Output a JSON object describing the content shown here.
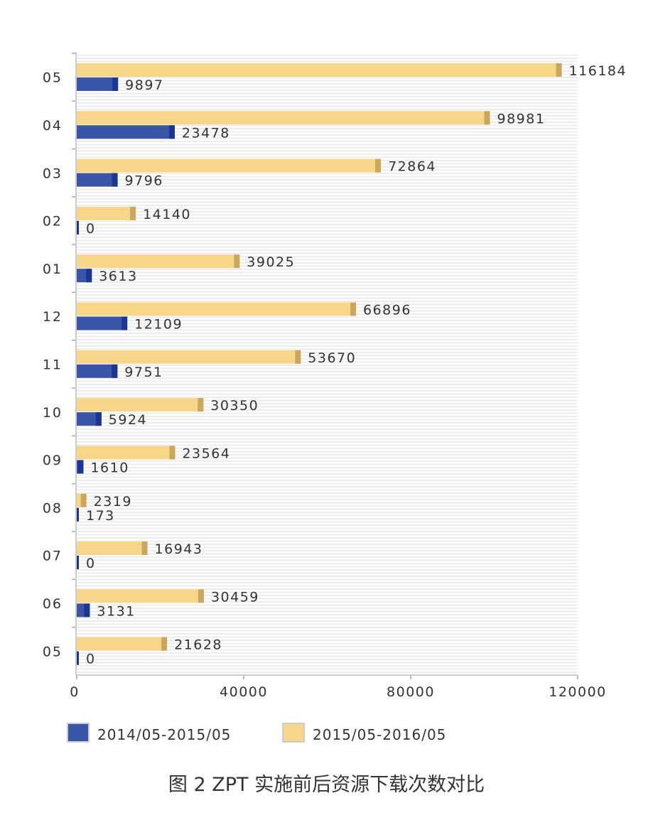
{
  "chart_data": {
    "type": "bar",
    "orientation": "horizontal",
    "categories": [
      "05",
      "04",
      "03",
      "02",
      "01",
      "12",
      "11",
      "10",
      "09",
      "08",
      "07",
      "06",
      "05"
    ],
    "series": [
      {
        "name": "2014/05-2015/05",
        "color": "#3a55a8",
        "values": [
          9897,
          23478,
          9796,
          0,
          3613,
          12109,
          9751,
          5924,
          1610,
          173,
          0,
          3131,
          0
        ]
      },
      {
        "name": "2015/05-2016/05",
        "color": "#f7d68a",
        "values": [
          116184,
          98981,
          72864,
          14140,
          39025,
          66896,
          53670,
          30350,
          23564,
          2319,
          16943,
          30459,
          21628
        ]
      }
    ],
    "xlim": [
      0,
      120000
    ],
    "xticks": [
      "0",
      "40000",
      "80000",
      "120000"
    ],
    "xtick_values": [
      0,
      40000,
      80000,
      120000
    ],
    "data_labels": true,
    "grid": "light horizontal stripes",
    "legend": "bottom"
  },
  "caption": "图 2  ZPT 实施前后资源下载次数对比"
}
